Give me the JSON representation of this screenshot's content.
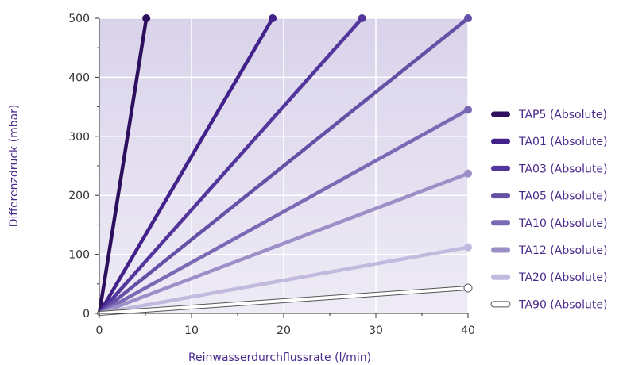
{
  "chart_data": {
    "type": "line",
    "title": "",
    "xlabel": "Reinwasserdurchflussrate (l/min)",
    "ylabel": "Differenzdruck (mbar)",
    "xlim": [
      0,
      40
    ],
    "ylim": [
      0,
      500
    ],
    "xticks": [
      0,
      10,
      20,
      30,
      40
    ],
    "yticks": [
      0,
      100,
      200,
      300,
      400,
      500
    ],
    "grid": true,
    "legend_position": "right",
    "plot_background": "#e9e5f3",
    "grid_color": "#ffffff",
    "series": [
      {
        "name": "TAP5 (Absolute)",
        "color": "#2d0f5e",
        "x": [
          0,
          5.1
        ],
        "y": [
          0,
          500
        ]
      },
      {
        "name": "TA01 (Absolute)",
        "color": "#42228a",
        "x": [
          0,
          18.8
        ],
        "y": [
          0,
          500
        ]
      },
      {
        "name": "TA03 (Absolute)",
        "color": "#53369b",
        "x": [
          0,
          28.5
        ],
        "y": [
          0,
          500
        ]
      },
      {
        "name": "TA05 (Absolute)",
        "color": "#6650a6",
        "x": [
          0,
          40
        ],
        "y": [
          0,
          500
        ]
      },
      {
        "name": "TA10 (Absolute)",
        "color": "#7a69b4",
        "x": [
          0,
          40
        ],
        "y": [
          0,
          345
        ]
      },
      {
        "name": "TA12 (Absolute)",
        "color": "#9c8fc8",
        "x": [
          0,
          40
        ],
        "y": [
          0,
          237
        ]
      },
      {
        "name": "TA20 (Absolute)",
        "color": "#c1b9de",
        "x": [
          0,
          40
        ],
        "y": [
          0,
          112
        ]
      },
      {
        "name": "TA90 (Absolute)",
        "color": "#ffffff",
        "x": [
          0,
          40
        ],
        "y": [
          0,
          43
        ]
      }
    ]
  }
}
